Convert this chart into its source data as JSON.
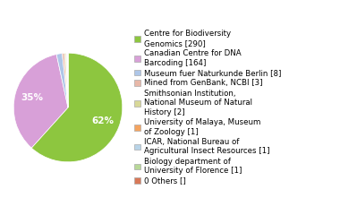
{
  "labels": [
    "Centre for Biodiversity\nGenomics [290]",
    "Canadian Centre for DNA\nBarcoding [164]",
    "Museum fuer Naturkunde Berlin [8]",
    "Mined from GenBank, NCBI [3]",
    "Smithsonian Institution,\nNational Museum of Natural\nHistory [2]",
    "University of Malaya, Museum\nof Zoology [1]",
    "ICAR, National Bureau of\nAgricultural Insect Resources [1]",
    "Biology department of\nUniversity of Florence [1]",
    "0 Others []"
  ],
  "values": [
    290,
    164,
    8,
    3,
    2,
    1,
    1,
    1,
    0.001
  ],
  "colors": [
    "#8dc63f",
    "#d8a0d8",
    "#aec6e8",
    "#e8b8a8",
    "#d8d898",
    "#f4a460",
    "#b8d4e8",
    "#b8d898",
    "#d87858"
  ],
  "background_color": "#ffffff",
  "font_size": 7.5,
  "legend_font_size": 6.2
}
